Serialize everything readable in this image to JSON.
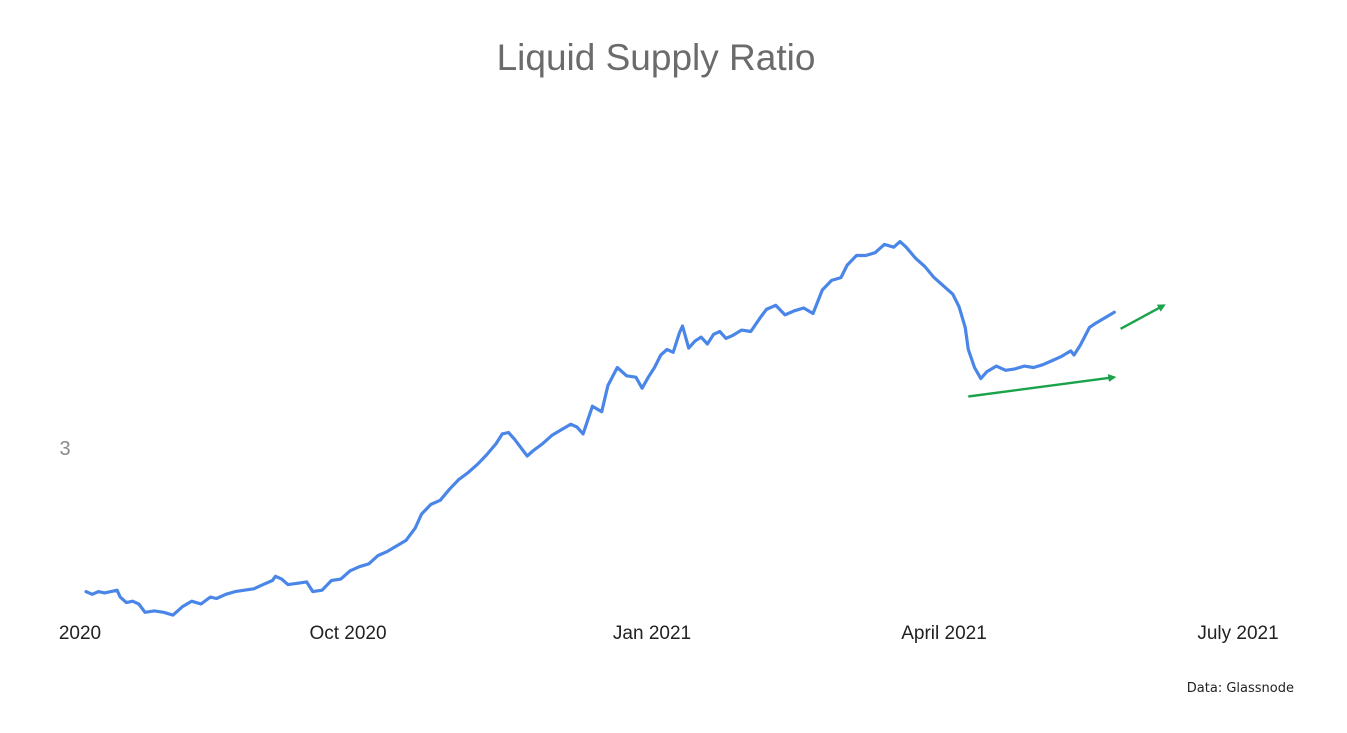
{
  "chart_data": {
    "type": "line",
    "title": "Liquid Supply Ratio",
    "xlabel": "",
    "ylabel": "",
    "x_tick_labels": [
      "2020",
      "Oct 2020",
      "Jan 2021",
      "April 2021",
      "July 2021"
    ],
    "y_tick_labels": [
      "3"
    ],
    "xlim": [
      "2020-07-01",
      "2021-07-20"
    ],
    "ylim": [
      2.2,
      5.75
    ],
    "grid": false,
    "legend": "none",
    "series": [
      {
        "color": "#4a86e8",
        "points": [
          [
            "2020-07-01",
            2.29
          ],
          [
            "2020-07-03",
            2.27
          ],
          [
            "2020-07-05",
            2.29
          ],
          [
            "2020-07-07",
            2.28
          ],
          [
            "2020-07-09",
            2.29
          ],
          [
            "2020-07-11",
            2.3
          ],
          [
            "2020-07-12",
            2.25
          ],
          [
            "2020-07-14",
            2.21
          ],
          [
            "2020-07-16",
            2.22
          ],
          [
            "2020-07-18",
            2.2
          ],
          [
            "2020-07-20",
            2.14
          ],
          [
            "2020-07-23",
            2.15
          ],
          [
            "2020-07-26",
            2.14
          ],
          [
            "2020-07-29",
            2.12
          ],
          [
            "2020-08-01",
            2.18
          ],
          [
            "2020-08-04",
            2.22
          ],
          [
            "2020-08-07",
            2.2
          ],
          [
            "2020-08-10",
            2.25
          ],
          [
            "2020-08-12",
            2.24
          ],
          [
            "2020-08-15",
            2.27
          ],
          [
            "2020-08-18",
            2.29
          ],
          [
            "2020-08-21",
            2.3
          ],
          [
            "2020-08-24",
            2.31
          ],
          [
            "2020-08-27",
            2.34
          ],
          [
            "2020-08-30",
            2.37
          ],
          [
            "2020-08-31",
            2.4
          ],
          [
            "2020-09-02",
            2.38
          ],
          [
            "2020-09-04",
            2.34
          ],
          [
            "2020-09-07",
            2.35
          ],
          [
            "2020-09-10",
            2.36
          ],
          [
            "2020-09-12",
            2.29
          ],
          [
            "2020-09-15",
            2.3
          ],
          [
            "2020-09-18",
            2.37
          ],
          [
            "2020-09-21",
            2.38
          ],
          [
            "2020-09-24",
            2.44
          ],
          [
            "2020-09-27",
            2.47
          ],
          [
            "2020-09-30",
            2.49
          ],
          [
            "2020-10-03",
            2.55
          ],
          [
            "2020-10-06",
            2.58
          ],
          [
            "2020-10-09",
            2.62
          ],
          [
            "2020-10-12",
            2.66
          ],
          [
            "2020-10-15",
            2.75
          ],
          [
            "2020-10-17",
            2.85
          ],
          [
            "2020-10-20",
            2.92
          ],
          [
            "2020-10-23",
            2.95
          ],
          [
            "2020-10-26",
            3.03
          ],
          [
            "2020-10-29",
            3.1
          ],
          [
            "2020-11-01",
            3.15
          ],
          [
            "2020-11-04",
            3.21
          ],
          [
            "2020-11-07",
            3.28
          ],
          [
            "2020-11-10",
            3.36
          ],
          [
            "2020-11-12",
            3.43
          ],
          [
            "2020-11-14",
            3.44
          ],
          [
            "2020-11-16",
            3.39
          ],
          [
            "2020-11-18",
            3.33
          ],
          [
            "2020-11-20",
            3.27
          ],
          [
            "2020-11-22",
            3.31
          ],
          [
            "2020-11-25",
            3.36
          ],
          [
            "2020-11-28",
            3.42
          ],
          [
            "2020-12-01",
            3.46
          ],
          [
            "2020-12-04",
            3.5
          ],
          [
            "2020-12-06",
            3.48
          ],
          [
            "2020-12-08",
            3.43
          ],
          [
            "2020-12-11",
            3.63
          ],
          [
            "2020-12-14",
            3.59
          ],
          [
            "2020-12-16",
            3.78
          ],
          [
            "2020-12-19",
            3.91
          ],
          [
            "2020-12-22",
            3.85
          ],
          [
            "2020-12-25",
            3.84
          ],
          [
            "2020-12-27",
            3.76
          ],
          [
            "2020-12-29",
            3.84
          ],
          [
            "2020-12-31",
            3.91
          ],
          [
            "2021-01-02",
            4.0
          ],
          [
            "2021-01-04",
            4.04
          ],
          [
            "2021-01-06",
            4.02
          ],
          [
            "2021-01-08",
            4.16
          ],
          [
            "2021-01-09",
            4.21
          ],
          [
            "2021-01-11",
            4.05
          ],
          [
            "2021-01-13",
            4.1
          ],
          [
            "2021-01-15",
            4.13
          ],
          [
            "2021-01-17",
            4.08
          ],
          [
            "2021-01-19",
            4.15
          ],
          [
            "2021-01-21",
            4.17
          ],
          [
            "2021-01-23",
            4.12
          ],
          [
            "2021-01-25",
            4.14
          ],
          [
            "2021-01-28",
            4.18
          ],
          [
            "2021-01-31",
            4.17
          ],
          [
            "2021-02-03",
            4.27
          ],
          [
            "2021-02-05",
            4.33
          ],
          [
            "2021-02-08",
            4.36
          ],
          [
            "2021-02-11",
            4.29
          ],
          [
            "2021-02-14",
            4.32
          ],
          [
            "2021-02-17",
            4.34
          ],
          [
            "2021-02-20",
            4.3
          ],
          [
            "2021-02-23",
            4.47
          ],
          [
            "2021-02-26",
            4.54
          ],
          [
            "2021-03-01",
            4.56
          ],
          [
            "2021-03-03",
            4.65
          ],
          [
            "2021-03-06",
            4.72
          ],
          [
            "2021-03-09",
            4.72
          ],
          [
            "2021-03-12",
            4.74
          ],
          [
            "2021-03-15",
            4.8
          ],
          [
            "2021-03-18",
            4.78
          ],
          [
            "2021-03-20",
            4.82
          ],
          [
            "2021-03-22",
            4.78
          ],
          [
            "2021-03-25",
            4.7
          ],
          [
            "2021-03-28",
            4.64
          ],
          [
            "2021-03-31",
            4.56
          ],
          [
            "2021-04-03",
            4.5
          ],
          [
            "2021-04-06",
            4.44
          ],
          [
            "2021-04-08",
            4.35
          ],
          [
            "2021-04-10",
            4.2
          ],
          [
            "2021-04-11",
            4.04
          ],
          [
            "2021-04-13",
            3.91
          ],
          [
            "2021-04-15",
            3.83
          ],
          [
            "2021-04-17",
            3.88
          ],
          [
            "2021-04-20",
            3.92
          ],
          [
            "2021-04-23",
            3.89
          ],
          [
            "2021-04-26",
            3.9
          ],
          [
            "2021-04-29",
            3.92
          ],
          [
            "2021-05-02",
            3.91
          ],
          [
            "2021-05-05",
            3.93
          ],
          [
            "2021-05-08",
            3.96
          ],
          [
            "2021-05-11",
            3.99
          ],
          [
            "2021-05-14",
            4.03
          ],
          [
            "2021-05-15",
            4.0
          ],
          [
            "2021-05-17",
            4.07
          ],
          [
            "2021-05-20",
            4.2
          ],
          [
            "2021-05-22",
            4.23
          ],
          [
            "2021-05-25",
            4.27
          ],
          [
            "2021-05-28",
            4.31
          ]
        ]
      }
    ],
    "annotations": [
      {
        "kind": "arrow",
        "color": "#1aa34a",
        "from": [
          "2021-04-11",
          3.7
        ],
        "to": [
          "2021-05-28",
          3.84
        ]
      },
      {
        "kind": "arrow",
        "color": "#1aa34a",
        "from": [
          "2021-05-30",
          4.19
        ],
        "to": [
          "2021-06-13",
          4.36
        ]
      }
    ],
    "source_note": "Data: Glassnode"
  }
}
